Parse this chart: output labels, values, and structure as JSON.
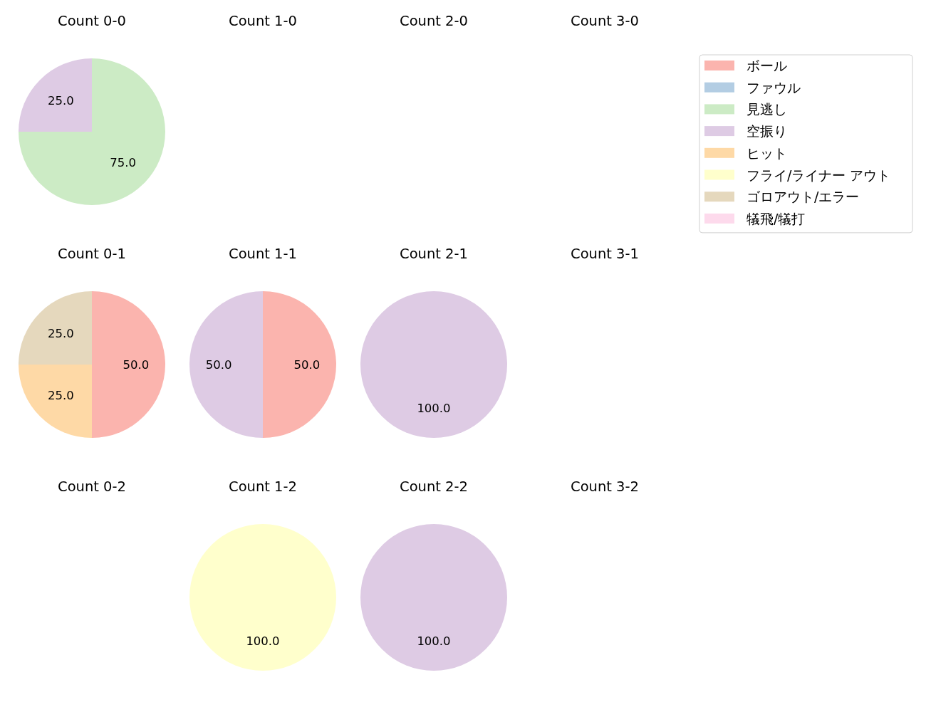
{
  "chart_data": [
    {
      "type": "pie",
      "title": "Count 0-0",
      "categories": [
        "ボール",
        "ファウル",
        "見逃し",
        "空振り",
        "ヒット",
        "フライ/ライナー アウト",
        "ゴロアウト/エラー",
        "犠飛/犠打"
      ],
      "colors": [
        "#fbb4ae",
        "#b3cde3",
        "#ccebc5",
        "#decbe4",
        "#fed9a6",
        "#ffffcc",
        "#e5d8bd",
        "#fddaec"
      ],
      "values": [
        0,
        0,
        75,
        25,
        0,
        0,
        0,
        0
      ],
      "value_labels": [
        null,
        null,
        "75.0",
        "25.0",
        null,
        null,
        null,
        null
      ],
      "legend": "right"
    },
    {
      "type": "other",
      "title": "Count 1-0"
    },
    {
      "type": "other",
      "title": "Count 2-0"
    },
    {
      "type": "other",
      "title": "Count 3-0"
    },
    {
      "type": "pie",
      "title": "Count 0-1",
      "categories": [
        null,
        null,
        null
      ],
      "colors": [
        "#fbb4ae",
        "#fed9a6",
        "#e5d8bd"
      ],
      "values": [
        50,
        25,
        25
      ],
      "value_labels": [
        "50.0",
        "25.0",
        "25.0"
      ]
    },
    {
      "type": "pie",
      "title": "Count 1-1",
      "categories": [
        null,
        null
      ],
      "colors": [
        "#fbb4ae",
        "#decbe4"
      ],
      "values": [
        50,
        50
      ],
      "value_labels": [
        "50.0",
        "50.0"
      ]
    },
    {
      "type": "pie",
      "title": "Count 2-1",
      "categories": [
        null
      ],
      "colors": [
        "#decbe4"
      ],
      "values": [
        100
      ],
      "value_labels": [
        "100.0"
      ]
    },
    {
      "type": "other",
      "title": "Count 3-1"
    },
    {
      "type": "other",
      "title": "Count 0-2"
    },
    {
      "type": "pie",
      "title": "Count 1-2",
      "categories": [
        null
      ],
      "colors": [
        "#ffffcc"
      ],
      "values": [
        100
      ],
      "value_labels": [
        "100.0"
      ]
    },
    {
      "type": "pie",
      "title": "Count 2-2",
      "categories": [
        null
      ],
      "colors": [
        "#decbe4"
      ],
      "values": [
        100
      ],
      "value_labels": [
        "100.0"
      ]
    },
    {
      "type": "other",
      "title": "Count 3-2"
    }
  ]
}
